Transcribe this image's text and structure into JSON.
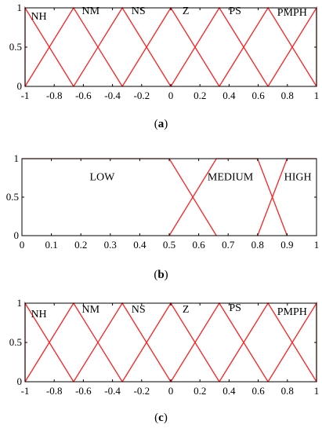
{
  "captions": {
    "a": "(a)",
    "b": "(b)",
    "c": "(c)"
  },
  "colors": {
    "mf_line": "#ff2020",
    "axis": "#000000"
  },
  "chart_data": [
    {
      "type": "line",
      "title": "",
      "xlim": [
        -1,
        1
      ],
      "ylim": [
        0,
        1
      ],
      "xticks": [
        -1,
        -0.8,
        -0.6,
        -0.4,
        -0.2,
        0,
        0.2,
        0.4,
        0.6,
        0.8,
        1
      ],
      "xtick_labels": [
        "-1",
        "-0.8",
        "-0.6",
        "-0.4",
        "-0.2",
        "0",
        "0.2",
        "0.4",
        "0.6",
        "0.8",
        "1"
      ],
      "yticks": [
        0,
        0.5,
        1
      ],
      "ytick_labels": [
        "0",
        "0.5",
        "1"
      ],
      "series": [
        {
          "name": "NH",
          "x": [
            -1,
            -1,
            -0.667
          ],
          "y": [
            0,
            1,
            0
          ]
        },
        {
          "name": "NM",
          "x": [
            -1,
            -0.667,
            -0.333
          ],
          "y": [
            0,
            1,
            0
          ]
        },
        {
          "name": "NS",
          "x": [
            -0.667,
            -0.333,
            0
          ],
          "y": [
            0,
            1,
            0
          ]
        },
        {
          "name": "Z",
          "x": [
            -0.333,
            0,
            0.333
          ],
          "y": [
            0,
            1,
            0
          ]
        },
        {
          "name": "PS",
          "x": [
            0,
            0.333,
            0.667
          ],
          "y": [
            0,
            1,
            0
          ]
        },
        {
          "name": "PM",
          "x": [
            0.333,
            0.667,
            1
          ],
          "y": [
            0,
            1,
            0
          ]
        },
        {
          "name": "PH",
          "x": [
            0.667,
            1,
            1
          ],
          "y": [
            0,
            1,
            0
          ]
        }
      ],
      "labels": [
        {
          "text": "NH",
          "x": -0.96,
          "y": 0.85
        },
        {
          "text": "NM",
          "x": -0.61,
          "y": 0.92
        },
        {
          "text": "NS",
          "x": -0.27,
          "y": 0.92
        },
        {
          "text": "Z",
          "x": 0.08,
          "y": 0.92
        },
        {
          "text": "PS",
          "x": 0.4,
          "y": 0.92
        },
        {
          "text": "PMPH",
          "x": 0.73,
          "y": 0.9
        }
      ]
    },
    {
      "type": "line",
      "title": "",
      "xlim": [
        0,
        1
      ],
      "ylim": [
        0,
        1
      ],
      "xticks": [
        0,
        0.1,
        0.2,
        0.3,
        0.4,
        0.5,
        0.6,
        0.7,
        0.8,
        0.9,
        1
      ],
      "xtick_labels": [
        "0",
        "0.1",
        "0.2",
        "0.3",
        "0.4",
        "0.5",
        "0.6",
        "0.7",
        "0.8",
        "0.9",
        "1"
      ],
      "yticks": [
        0,
        0.5,
        1
      ],
      "ytick_labels": [
        "0",
        "0.5",
        "1"
      ],
      "series": [
        {
          "name": "LOW",
          "x": [
            0,
            0.5,
            0.66
          ],
          "y": [
            1,
            1,
            0
          ]
        },
        {
          "name": "MEDIUM",
          "x": [
            0.5,
            0.66,
            0.8,
            0.9
          ],
          "y": [
            0,
            1,
            1,
            0
          ]
        },
        {
          "name": "HIGH",
          "x": [
            0.8,
            0.9,
            1
          ],
          "y": [
            0,
            1,
            1
          ]
        }
      ],
      "labels": [
        {
          "text": "LOW",
          "x": 0.23,
          "y": 0.72
        },
        {
          "text": "MEDIUM",
          "x": 0.63,
          "y": 0.72
        },
        {
          "text": "HIGH",
          "x": 0.89,
          "y": 0.72
        }
      ]
    },
    {
      "type": "line",
      "title": "",
      "xlim": [
        -1,
        1
      ],
      "ylim": [
        0,
        1
      ],
      "xticks": [
        -1,
        -0.8,
        -0.6,
        -0.4,
        -0.2,
        0,
        0.2,
        0.4,
        0.6,
        0.8,
        1
      ],
      "xtick_labels": [
        "-1",
        "-0.8",
        "-0.6",
        "-0.4",
        "-0.2",
        "0",
        "0.2",
        "0.4",
        "0.6",
        "0.8",
        "1"
      ],
      "yticks": [
        0,
        0.5,
        1
      ],
      "ytick_labels": [
        "0",
        "0.5",
        "1"
      ],
      "series": [
        {
          "name": "NH",
          "x": [
            -1,
            -1,
            -0.667
          ],
          "y": [
            0,
            1,
            0
          ]
        },
        {
          "name": "NM",
          "x": [
            -1,
            -0.667,
            -0.333
          ],
          "y": [
            0,
            1,
            0
          ]
        },
        {
          "name": "NS",
          "x": [
            -0.667,
            -0.333,
            0
          ],
          "y": [
            0,
            1,
            0
          ]
        },
        {
          "name": "Z",
          "x": [
            -0.333,
            0,
            0.333
          ],
          "y": [
            0,
            1,
            0
          ]
        },
        {
          "name": "PS",
          "x": [
            0,
            0.333,
            0.667
          ],
          "y": [
            0,
            1,
            0
          ]
        },
        {
          "name": "PM",
          "x": [
            0.333,
            0.667,
            1
          ],
          "y": [
            0,
            1,
            0
          ]
        },
        {
          "name": "PH",
          "x": [
            0.667,
            1,
            1
          ],
          "y": [
            0,
            1,
            0
          ]
        }
      ],
      "labels": [
        {
          "text": "NH",
          "x": -0.96,
          "y": 0.82
        },
        {
          "text": "NM",
          "x": -0.61,
          "y": 0.88
        },
        {
          "text": "NS",
          "x": -0.27,
          "y": 0.88
        },
        {
          "text": "Z",
          "x": 0.08,
          "y": 0.88
        },
        {
          "text": "PS",
          "x": 0.4,
          "y": 0.9
        },
        {
          "text": "PMPH",
          "x": 0.73,
          "y": 0.85
        }
      ]
    }
  ]
}
